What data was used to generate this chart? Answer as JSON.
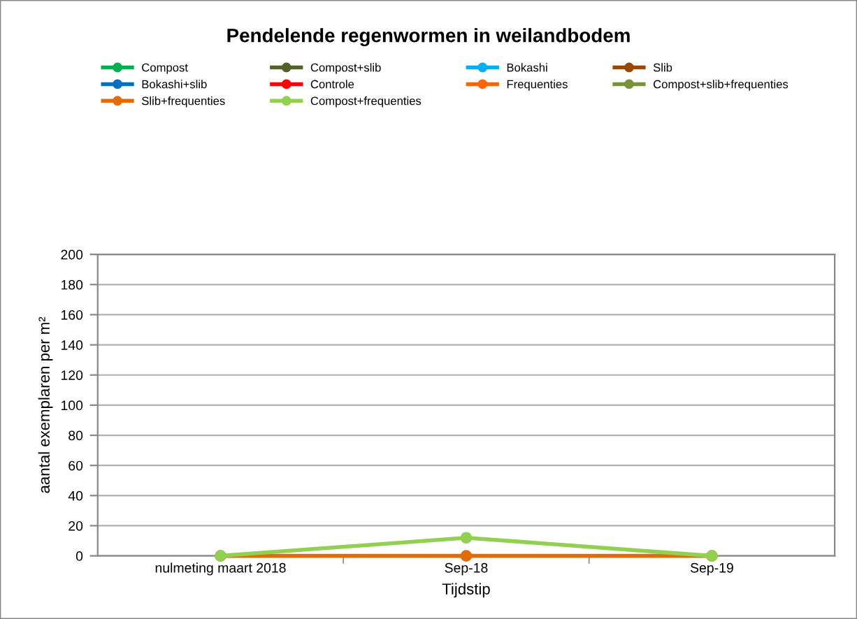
{
  "chart_data": {
    "type": "line",
    "title": "Pendelende regenwormen in weilandbodem",
    "xlabel": "Tijdstip",
    "ylabel": "aantal exemplaren per m²",
    "categories": [
      "nulmeting maart 2018",
      "Sep-18",
      "Sep-19"
    ],
    "series": [
      {
        "name": "Compost",
        "color": "#00b050",
        "values": [
          null,
          null,
          null
        ]
      },
      {
        "name": "Compost+slib",
        "color": "#4f6228",
        "values": [
          null,
          null,
          null
        ]
      },
      {
        "name": "Bokashi",
        "color": "#00b0f0",
        "values": [
          null,
          null,
          null
        ]
      },
      {
        "name": "Slib",
        "color": "#974706",
        "values": [
          null,
          null,
          null
        ]
      },
      {
        "name": "Bokashi+slib",
        "color": "#0070c0",
        "values": [
          null,
          null,
          null
        ]
      },
      {
        "name": "Controle",
        "color": "#ff0000",
        "values": [
          null,
          null,
          null
        ]
      },
      {
        "name": "Frequenties",
        "color": "#ff6600",
        "values": [
          null,
          null,
          null
        ]
      },
      {
        "name": "Compost+slib+frequenties",
        "color": "#77933c",
        "values": [
          null,
          null,
          null
        ]
      },
      {
        "name": "Slib+frequenties",
        "color": "#e36c09",
        "values": [
          0,
          0,
          0
        ]
      },
      {
        "name": "Compost+frequenties",
        "color": "#92d050",
        "values": [
          0,
          12,
          0
        ]
      }
    ],
    "ylim": [
      0,
      200
    ],
    "yticks": [
      0,
      20,
      40,
      60,
      80,
      100,
      120,
      140,
      160,
      180,
      200
    ],
    "grid": "y",
    "legend": "top",
    "marker": "circle",
    "line_style": "solid"
  }
}
